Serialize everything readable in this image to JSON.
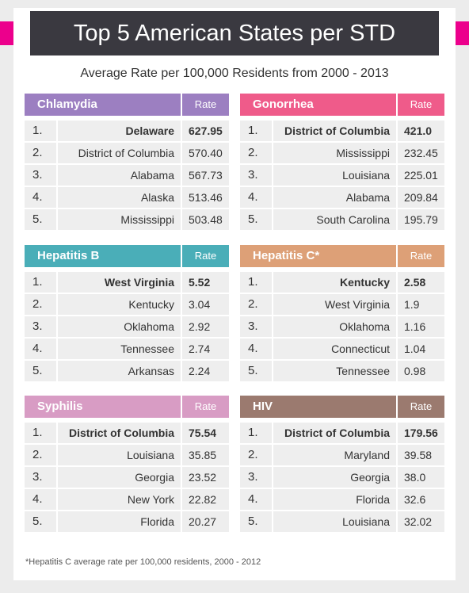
{
  "title": "Top 5 American States per STD",
  "subtitle": "Average Rate per 100,000 Residents from 2000 - 2013",
  "rate_label": "Rate",
  "footnote": "*Hepatitis C average rate per 100,000 residents, 2000 - 2012",
  "colors": {
    "banner": "#3a3940",
    "accent_band": "#ec008c",
    "chlamydia": "#9c7fc1",
    "gonorrhea": "#ef5b8a",
    "hepatitis_b": "#4aaeb8",
    "hepatitis_c": "#dda077",
    "syphilis": "#d89cc4",
    "hiv": "#9b7a6f"
  },
  "tables": [
    {
      "name": "Chlamydia",
      "color": "#9c7fc1",
      "rows": [
        {
          "rank": "1.",
          "state": "Delaware",
          "value": "627.95"
        },
        {
          "rank": "2.",
          "state": "District of Columbia",
          "value": "570.40"
        },
        {
          "rank": "3.",
          "state": "Alabama",
          "value": "567.73"
        },
        {
          "rank": "4.",
          "state": "Alaska",
          "value": "513.46"
        },
        {
          "rank": "5.",
          "state": "Mississippi",
          "value": "503.48"
        }
      ]
    },
    {
      "name": "Gonorrhea",
      "color": "#ef5b8a",
      "rows": [
        {
          "rank": "1.",
          "state": "District of Columbia",
          "value": "421.0"
        },
        {
          "rank": "2.",
          "state": "Mississippi",
          "value": "232.45"
        },
        {
          "rank": "3.",
          "state": "Louisiana",
          "value": "225.01"
        },
        {
          "rank": "4.",
          "state": "Alabama",
          "value": "209.84"
        },
        {
          "rank": "5.",
          "state": "South Carolina",
          "value": "195.79"
        }
      ]
    },
    {
      "name": "Hepatitis B",
      "color": "#4aaeb8",
      "rows": [
        {
          "rank": "1.",
          "state": "West Virginia",
          "value": "5.52"
        },
        {
          "rank": "2.",
          "state": "Kentucky",
          "value": "3.04"
        },
        {
          "rank": "3.",
          "state": "Oklahoma",
          "value": "2.92"
        },
        {
          "rank": "4.",
          "state": "Tennessee",
          "value": "2.74"
        },
        {
          "rank": "5.",
          "state": "Arkansas",
          "value": "2.24"
        }
      ]
    },
    {
      "name": "Hepatitis C*",
      "color": "#dda077",
      "rows": [
        {
          "rank": "1.",
          "state": "Kentucky",
          "value": "2.58"
        },
        {
          "rank": "2.",
          "state": "West Virginia",
          "value": "1.9"
        },
        {
          "rank": "3.",
          "state": "Oklahoma",
          "value": "1.16"
        },
        {
          "rank": "4.",
          "state": "Connecticut",
          "value": "1.04"
        },
        {
          "rank": "5.",
          "state": "Tennessee",
          "value": "0.98"
        }
      ]
    },
    {
      "name": "Syphilis",
      "color": "#d89cc4",
      "rows": [
        {
          "rank": "1.",
          "state": "District of Columbia",
          "value": "75.54"
        },
        {
          "rank": "2.",
          "state": "Louisiana",
          "value": "35.85"
        },
        {
          "rank": "3.",
          "state": "Georgia",
          "value": "23.52"
        },
        {
          "rank": "4.",
          "state": "New York",
          "value": "22.82"
        },
        {
          "rank": "5.",
          "state": "Florida",
          "value": "20.27"
        }
      ]
    },
    {
      "name": "HIV",
      "color": "#9b7a6f",
      "rows": [
        {
          "rank": "1.",
          "state": "District of Columbia",
          "value": "179.56"
        },
        {
          "rank": "2.",
          "state": "Maryland",
          "value": "39.58"
        },
        {
          "rank": "3.",
          "state": "Georgia",
          "value": "38.0"
        },
        {
          "rank": "4.",
          "state": "Florida",
          "value": "32.6"
        },
        {
          "rank": "5.",
          "state": "Louisiana",
          "value": "32.02"
        }
      ]
    }
  ]
}
